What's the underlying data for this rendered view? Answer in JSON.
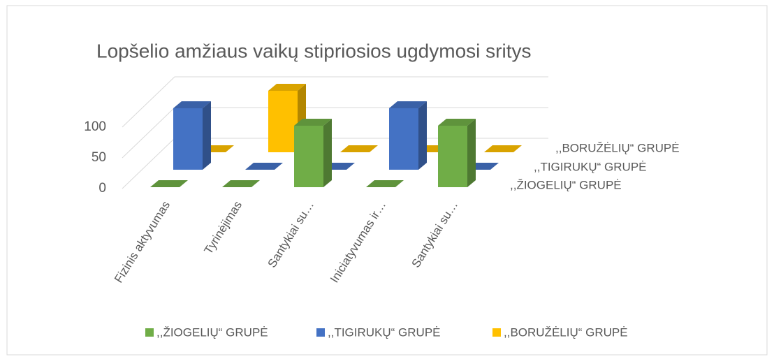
{
  "chart_data": {
    "type": "bar3d",
    "title": "Lopšelio amžiaus vaikų stipriosios ugdymosi sritys",
    "categories": [
      "Fizinis aktyvumas",
      "Tyrinėjimas",
      "Santykiai su…",
      "Iniciatyvumas ir…",
      "Santykiai su…"
    ],
    "series": [
      {
        "name": ",,ŽIOGELIŲ“ GRUPĖ",
        "color": "#70ad47",
        "values": [
          0,
          0,
          100,
          0,
          100
        ]
      },
      {
        "name": ",,TIGIRUKŲ“ GRUPĖ",
        "color": "#4472c4",
        "values": [
          100,
          0,
          0,
          100,
          0
        ]
      },
      {
        "name": ",,BORUŽĖLIŲ“ GRUPĖ",
        "color": "#ffc000",
        "values": [
          0,
          100,
          0,
          0,
          0
        ]
      }
    ],
    "ylim": [
      0,
      150
    ],
    "yticks": [
      0,
      50,
      100
    ],
    "grid": true,
    "legend": "bottom"
  }
}
